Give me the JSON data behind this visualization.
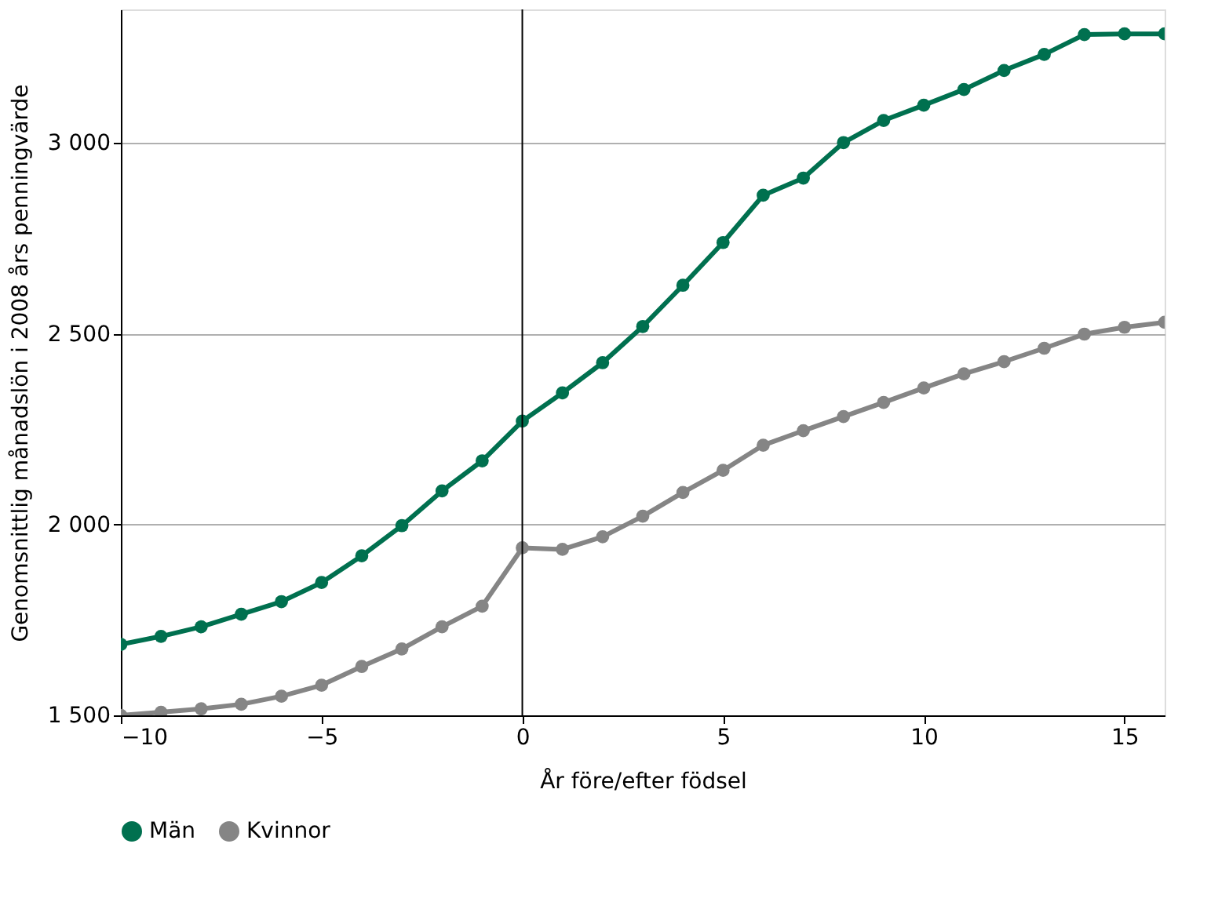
{
  "chart_data": {
    "type": "line",
    "xlabel": "År före/efter födsel",
    "ylabel": "Genomsnittlig månadslön i 2008 års penningvärde",
    "x": [
      -10,
      -9,
      -8,
      -7,
      -6,
      -5,
      -4,
      -3,
      -2,
      -1,
      0,
      1,
      2,
      3,
      4,
      5,
      6,
      7,
      8,
      9,
      10,
      11,
      12,
      13,
      14,
      15,
      16
    ],
    "series": [
      {
        "name": "Män",
        "color": "#00704f",
        "values": [
          1686,
          1707,
          1732,
          1765,
          1798,
          1848,
          1918,
          1997,
          2088,
          2167,
          2271,
          2345,
          2424,
          2519,
          2627,
          2739,
          2863,
          2908,
          3001,
          3059,
          3099,
          3140,
          3190,
          3232,
          3284,
          3286,
          3286
        ]
      },
      {
        "name": "Kvinnor",
        "color": "#858585",
        "values": [
          1500,
          1508,
          1517,
          1529,
          1550,
          1579,
          1628,
          1674,
          1732,
          1786,
          1939,
          1935,
          1968,
          2022,
          2084,
          2142,
          2208,
          2246,
          2283,
          2320,
          2358,
          2395,
          2427,
          2462,
          2499,
          2517,
          2530
        ]
      }
    ],
    "xlim": [
      -10,
      16
    ],
    "xticks": [
      {
        "value": -10,
        "label": "−10"
      },
      {
        "value": -5,
        "label": "−5"
      },
      0,
      5,
      10,
      15
    ],
    "ylim": [
      1500,
      3350
    ],
    "yticks": [
      {
        "value": 1500,
        "label": "1 500"
      },
      {
        "value": 2000,
        "label": "2 000"
      },
      {
        "value": 2500,
        "label": "2 500"
      },
      {
        "value": 3000,
        "label": "3 000"
      }
    ],
    "ref_lines": [
      {
        "axis": "x",
        "value": 0,
        "color": "#000000"
      }
    ],
    "grid": "y",
    "legend": "bottom",
    "marker": "circle",
    "line_style": "solid"
  }
}
